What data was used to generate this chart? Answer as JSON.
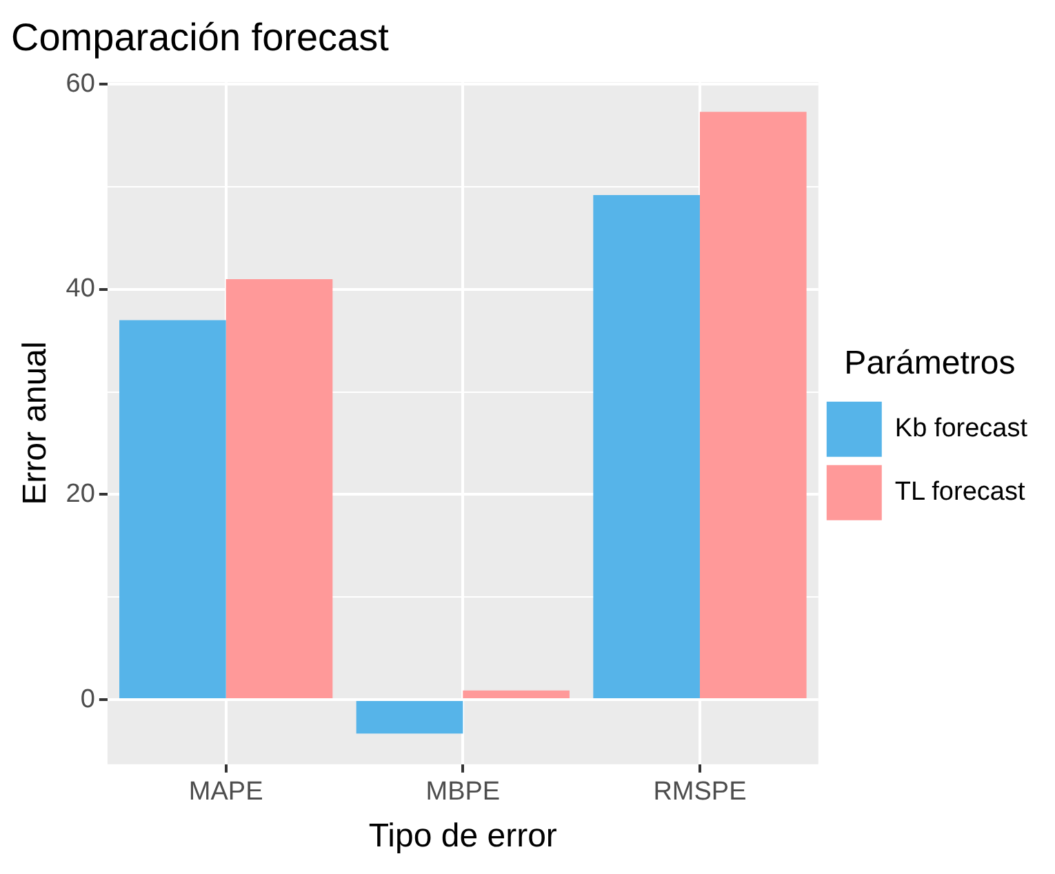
{
  "chart_data": {
    "type": "bar",
    "title": "Comparación forecast",
    "xlabel": "Tipo de error",
    "ylabel": "Error anual",
    "legend_title": "Parámetros",
    "categories": [
      "MAPE",
      "MBPE",
      "RMSPE"
    ],
    "series": [
      {
        "name": "Kb forecast",
        "color": "#56b4e9",
        "values": [
          37.0,
          -3.3,
          49.2
        ]
      },
      {
        "name": "TL forecast",
        "color": "#ff9999",
        "values": [
          41.0,
          0.9,
          57.3
        ]
      }
    ],
    "ylim": [
      -6.3,
      60.2
    ],
    "yticks": [
      0,
      {
        "value": 10,
        "label": null
      },
      20,
      {
        "value": 30,
        "label": null
      },
      40,
      {
        "value": 50,
        "label": null
      },
      60
    ],
    "grid": true,
    "legend": "right"
  }
}
